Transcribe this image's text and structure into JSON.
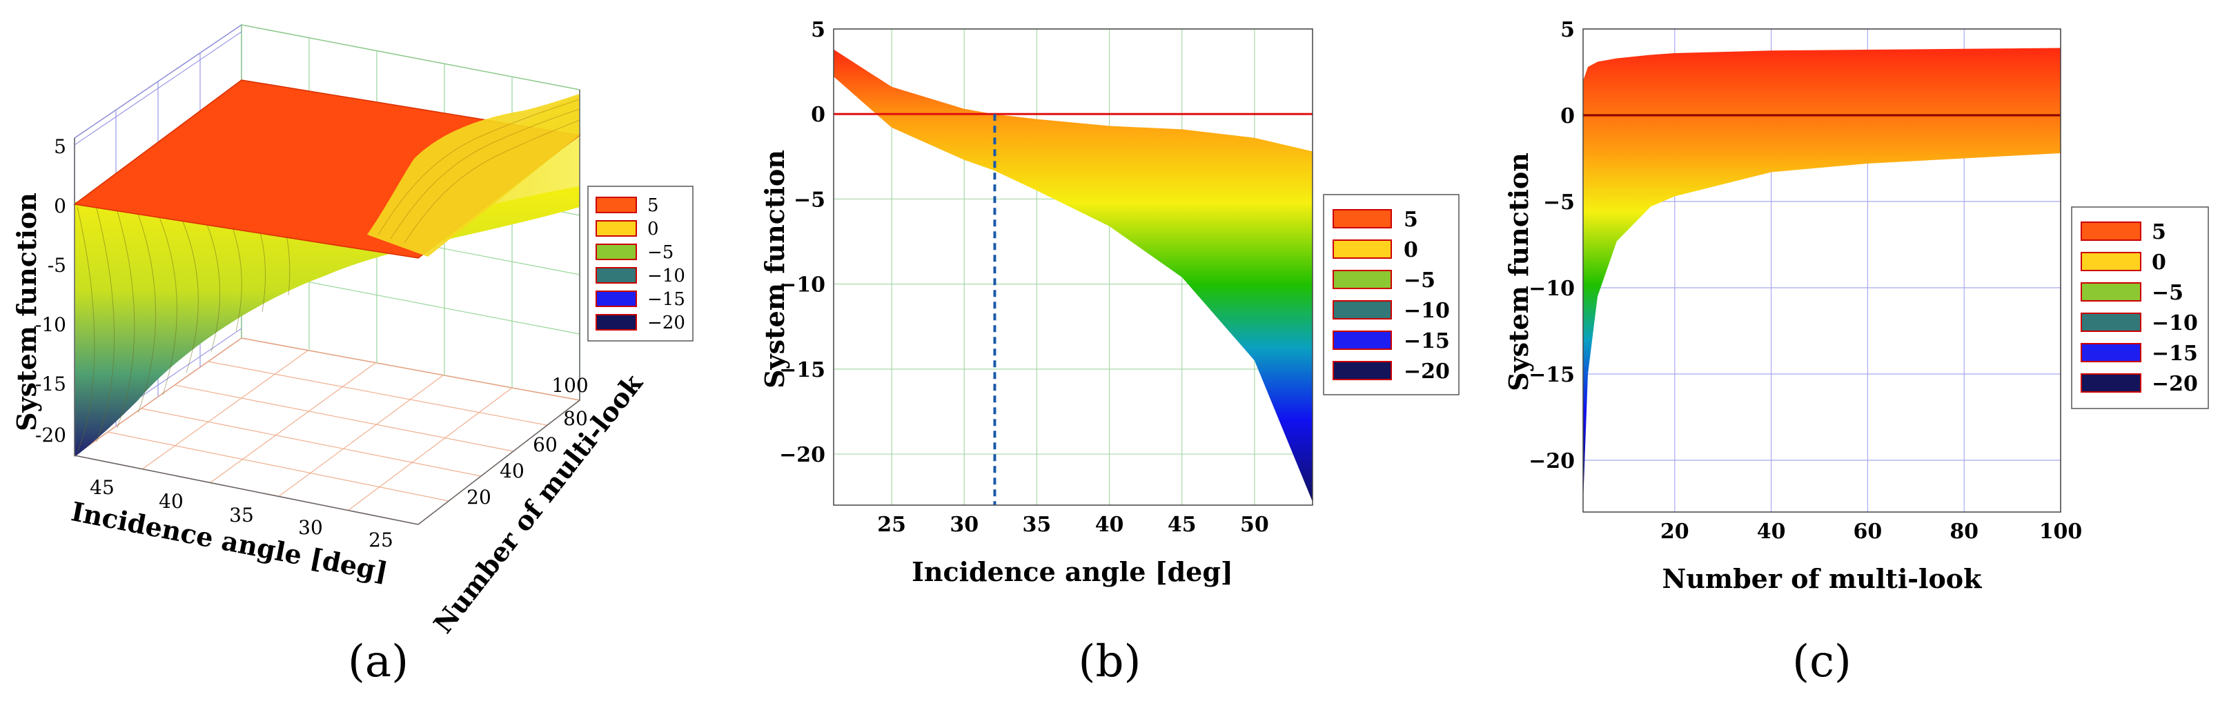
{
  "chart_data": [
    {
      "id": "a",
      "type": "surface3d",
      "panel_label": "(a)",
      "zlabel": "System function",
      "xlabel": "Incidence angle [deg]",
      "ylabel": "Number of multi-look",
      "z_ticks": [
        "5",
        "0",
        "-5",
        "-10",
        "-15",
        "-20"
      ],
      "x_ticks": [
        "45",
        "40",
        "35",
        "30",
        "25"
      ],
      "y_ticks": [
        "20",
        "40",
        "60",
        "80",
        "100"
      ],
      "zlim": [
        -22,
        5
      ],
      "reference_plane_z": 0,
      "legend": [
        {
          "label": "5",
          "color": "#ff5a14"
        },
        {
          "label": "0",
          "color": "#ffd21e"
        },
        {
          "label": "−5",
          "color": "#8cc832"
        },
        {
          "label": "−10",
          "color": "#327878"
        },
        {
          "label": "−15",
          "color": "#1e1ef0"
        },
        {
          "label": "−20",
          "color": "#14145a"
        }
      ]
    },
    {
      "id": "b",
      "type": "area",
      "panel_label": "(b)",
      "xlabel": "Incidence angle [deg]",
      "ylabel": "System function",
      "xlim": [
        21,
        54
      ],
      "ylim": [
        -23,
        5
      ],
      "x_ticks": [
        25,
        30,
        35,
        40,
        45,
        50
      ],
      "y_ticks": [
        5,
        0,
        -5,
        -10,
        -15,
        -20
      ],
      "upper_curve": {
        "x": [
          21,
          25,
          30,
          32,
          35,
          40,
          45,
          50,
          54
        ],
        "y": [
          3.8,
          1.6,
          0.3,
          0,
          -0.3,
          -0.7,
          -0.9,
          -1.4,
          -2.2
        ]
      },
      "lower_curve": {
        "x": [
          21,
          25,
          30,
          32,
          35,
          40,
          45,
          50,
          54
        ],
        "y": [
          2.2,
          -0.8,
          -2.7,
          -3.3,
          -4.5,
          -6.6,
          -9.6,
          -14.5,
          -22.8
        ]
      },
      "reference_line_y": 0,
      "crossing_x": 32.1,
      "legend": [
        {
          "label": "5",
          "color": "#ff5a14"
        },
        {
          "label": "0",
          "color": "#ffd21e"
        },
        {
          "label": "−5",
          "color": "#8cc832"
        },
        {
          "label": "−10",
          "color": "#327878"
        },
        {
          "label": "−15",
          "color": "#1e1ef0"
        },
        {
          "label": "−20",
          "color": "#14145a"
        }
      ]
    },
    {
      "id": "c",
      "type": "area",
      "panel_label": "(c)",
      "xlabel": "Number of multi-look",
      "ylabel": "System function",
      "xlim": [
        1,
        100
      ],
      "ylim": [
        -23,
        5
      ],
      "x_ticks": [
        20,
        40,
        60,
        80,
        100
      ],
      "y_ticks": [
        5,
        0,
        -5,
        -10,
        -15,
        -20
      ],
      "upper_curve": {
        "x": [
          1,
          2,
          4,
          8,
          15,
          20,
          40,
          60,
          80,
          100
        ],
        "y": [
          2.0,
          2.8,
          3.1,
          3.3,
          3.5,
          3.6,
          3.75,
          3.8,
          3.85,
          3.9
        ]
      },
      "lower_curve": {
        "x": [
          1,
          2,
          4,
          8,
          15,
          20,
          40,
          60,
          80,
          100
        ],
        "y": [
          -22.5,
          -15.0,
          -10.5,
          -7.3,
          -5.3,
          -4.7,
          -3.3,
          -2.8,
          -2.5,
          -2.2
        ]
      },
      "reference_line_y": 0,
      "legend": [
        {
          "label": "5",
          "color": "#ff5a14"
        },
        {
          "label": "0",
          "color": "#ffd21e"
        },
        {
          "label": "−5",
          "color": "#8cc832"
        },
        {
          "label": "−10",
          "color": "#327878"
        },
        {
          "label": "−15",
          "color": "#1e1ef0"
        },
        {
          "label": "−20",
          "color": "#14145a"
        }
      ]
    }
  ]
}
